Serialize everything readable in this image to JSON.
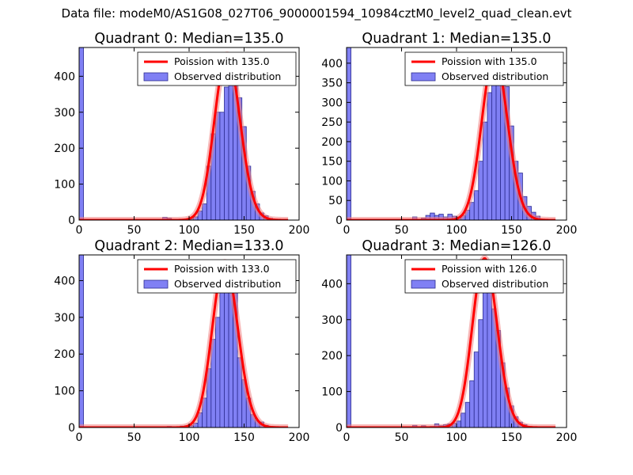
{
  "figure": {
    "title": "Data file: modeM0/AS1G08_027T06_9000001594_10984cztM0_level2_quad_clean.evt"
  },
  "colors": {
    "bar_fill": "#8080f4",
    "bar_edge": "#2c2c90",
    "curve": "#ff0000",
    "curve_glow": "#f08080"
  },
  "chart_data": [
    {
      "type": "bar",
      "title": "Quadrant 0: Median=135.0",
      "xlim": [
        0,
        200
      ],
      "ylim": [
        0,
        480
      ],
      "xticks": [
        0,
        50,
        100,
        150,
        200
      ],
      "yticks": [
        0,
        100,
        200,
        300,
        400
      ],
      "legend": [
        "Poission with 135.0",
        "Observed distribution"
      ],
      "legend_loc": "upper right",
      "median": 135.0,
      "poisson_peak": 460,
      "bin_width": 4,
      "bins": [
        {
          "x": 0,
          "y": 480
        },
        {
          "x": 76,
          "y": 8
        },
        {
          "x": 80,
          "y": 5
        },
        {
          "x": 96,
          "y": 2
        },
        {
          "x": 100,
          "y": 4
        },
        {
          "x": 104,
          "y": 9
        },
        {
          "x": 108,
          "y": 25
        },
        {
          "x": 112,
          "y": 45
        },
        {
          "x": 116,
          "y": 150
        },
        {
          "x": 120,
          "y": 240
        },
        {
          "x": 124,
          "y": 300
        },
        {
          "x": 128,
          "y": 300
        },
        {
          "x": 132,
          "y": 370
        },
        {
          "x": 136,
          "y": 440
        },
        {
          "x": 140,
          "y": 440
        },
        {
          "x": 144,
          "y": 340
        },
        {
          "x": 148,
          "y": 260
        },
        {
          "x": 152,
          "y": 150
        },
        {
          "x": 156,
          "y": 80
        },
        {
          "x": 160,
          "y": 45
        },
        {
          "x": 164,
          "y": 20
        },
        {
          "x": 168,
          "y": 12
        },
        {
          "x": 172,
          "y": 5
        }
      ]
    },
    {
      "type": "bar",
      "title": "Quadrant 1: Median=135.0",
      "xlim": [
        0,
        200
      ],
      "ylim": [
        0,
        440
      ],
      "xticks": [
        0,
        50,
        100,
        150,
        200
      ],
      "yticks": [
        0,
        50,
        100,
        150,
        200,
        250,
        300,
        350,
        400
      ],
      "legend": [
        "Poission with 135.0",
        "Observed distribution"
      ],
      "legend_loc": "upper right",
      "median": 135.0,
      "poisson_peak": 420,
      "bin_width": 4,
      "bins": [
        {
          "x": 0,
          "y": 440
        },
        {
          "x": 60,
          "y": 8
        },
        {
          "x": 68,
          "y": 5
        },
        {
          "x": 72,
          "y": 12
        },
        {
          "x": 76,
          "y": 18
        },
        {
          "x": 80,
          "y": 12
        },
        {
          "x": 84,
          "y": 15
        },
        {
          "x": 88,
          "y": 8
        },
        {
          "x": 92,
          "y": 15
        },
        {
          "x": 96,
          "y": 10
        },
        {
          "x": 100,
          "y": 8
        },
        {
          "x": 104,
          "y": 12
        },
        {
          "x": 108,
          "y": 25
        },
        {
          "x": 112,
          "y": 45
        },
        {
          "x": 116,
          "y": 75
        },
        {
          "x": 120,
          "y": 150
        },
        {
          "x": 124,
          "y": 250
        },
        {
          "x": 128,
          "y": 325
        },
        {
          "x": 132,
          "y": 370
        },
        {
          "x": 136,
          "y": 410
        },
        {
          "x": 140,
          "y": 380
        },
        {
          "x": 144,
          "y": 340
        },
        {
          "x": 148,
          "y": 240
        },
        {
          "x": 152,
          "y": 150
        },
        {
          "x": 156,
          "y": 120
        },
        {
          "x": 160,
          "y": 60
        },
        {
          "x": 164,
          "y": 35
        },
        {
          "x": 168,
          "y": 20
        },
        {
          "x": 172,
          "y": 10
        }
      ]
    },
    {
      "type": "bar",
      "title": "Quadrant 2: Median=133.0",
      "xlim": [
        0,
        200
      ],
      "ylim": [
        0,
        470
      ],
      "xticks": [
        0,
        50,
        100,
        150,
        200
      ],
      "yticks": [
        0,
        100,
        200,
        300,
        400
      ],
      "legend": [
        "Poission with 133.0",
        "Observed distribution"
      ],
      "legend_loc": "upper right",
      "median": 133.0,
      "poisson_peak": 450,
      "bin_width": 4,
      "bins": [
        {
          "x": 0,
          "y": 470
        },
        {
          "x": 80,
          "y": 3
        },
        {
          "x": 84,
          "y": 2
        },
        {
          "x": 88,
          "y": 2
        },
        {
          "x": 92,
          "y": 4
        },
        {
          "x": 96,
          "y": 5
        },
        {
          "x": 100,
          "y": 6
        },
        {
          "x": 104,
          "y": 12
        },
        {
          "x": 108,
          "y": 40
        },
        {
          "x": 112,
          "y": 80
        },
        {
          "x": 116,
          "y": 160
        },
        {
          "x": 120,
          "y": 240
        },
        {
          "x": 124,
          "y": 300
        },
        {
          "x": 128,
          "y": 420
        },
        {
          "x": 132,
          "y": 430
        },
        {
          "x": 136,
          "y": 390
        },
        {
          "x": 140,
          "y": 380
        },
        {
          "x": 144,
          "y": 190
        },
        {
          "x": 148,
          "y": 130
        },
        {
          "x": 152,
          "y": 80
        },
        {
          "x": 156,
          "y": 35
        },
        {
          "x": 160,
          "y": 18
        },
        {
          "x": 164,
          "y": 15
        },
        {
          "x": 168,
          "y": 6
        }
      ]
    },
    {
      "type": "bar",
      "title": "Quadrant 3: Median=126.0",
      "xlim": [
        0,
        200
      ],
      "ylim": [
        0,
        480
      ],
      "xticks": [
        0,
        50,
        100,
        150,
        200
      ],
      "yticks": [
        0,
        100,
        200,
        300,
        400
      ],
      "legend": [
        "Poission with 126.0",
        "Observed distribution"
      ],
      "legend_loc": "upper right",
      "median": 126.0,
      "poisson_peak": 470,
      "bin_width": 4,
      "bins": [
        {
          "x": 0,
          "y": 480
        },
        {
          "x": 60,
          "y": 6
        },
        {
          "x": 68,
          "y": 5
        },
        {
          "x": 76,
          "y": 3
        },
        {
          "x": 80,
          "y": 10
        },
        {
          "x": 84,
          "y": 5
        },
        {
          "x": 88,
          "y": 8
        },
        {
          "x": 92,
          "y": 10
        },
        {
          "x": 96,
          "y": 12
        },
        {
          "x": 100,
          "y": 18
        },
        {
          "x": 104,
          "y": 40
        },
        {
          "x": 108,
          "y": 70
        },
        {
          "x": 112,
          "y": 130
        },
        {
          "x": 116,
          "y": 210
        },
        {
          "x": 120,
          "y": 300
        },
        {
          "x": 124,
          "y": 440
        },
        {
          "x": 128,
          "y": 440
        },
        {
          "x": 132,
          "y": 330
        },
        {
          "x": 136,
          "y": 270
        },
        {
          "x": 140,
          "y": 180
        },
        {
          "x": 144,
          "y": 110
        },
        {
          "x": 148,
          "y": 60
        },
        {
          "x": 152,
          "y": 30
        },
        {
          "x": 156,
          "y": 15
        },
        {
          "x": 160,
          "y": 8
        }
      ]
    }
  ]
}
